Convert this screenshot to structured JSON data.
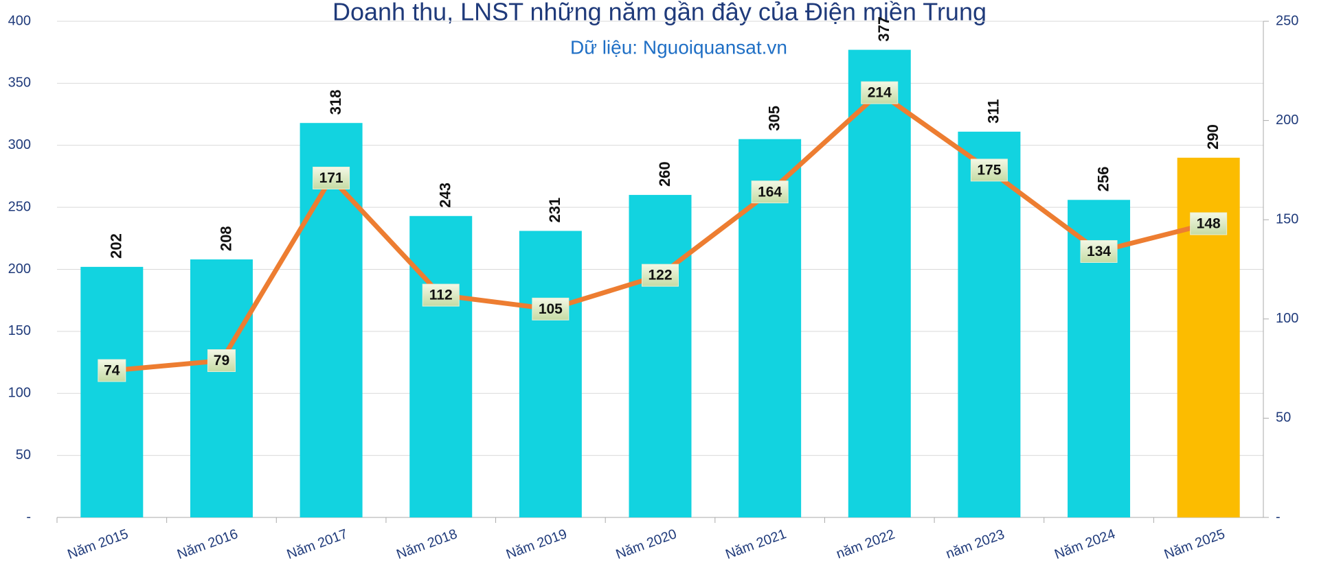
{
  "chart_data": {
    "type": "bar-line",
    "title": "Doanh thu, LNST những năm gần đây của Điện miền Trung",
    "subtitle": "Dữ liệu: Nguoiquansat.vn",
    "categories": [
      "Năm 2015",
      "Năm 2016",
      "Năm 2017",
      "Năm 2018",
      "Năm 2019",
      "Năm 2020",
      "Năm 2021",
      "năm 2022",
      "năm 2023",
      "Năm 2024",
      "Năm 2025"
    ],
    "series": [
      {
        "type": "bar",
        "colors": [
          "#12d3e0",
          "#12d3e0",
          "#12d3e0",
          "#12d3e0",
          "#12d3e0",
          "#12d3e0",
          "#12d3e0",
          "#12d3e0",
          "#12d3e0",
          "#12d3e0",
          "#fcbc00"
        ],
        "values": [
          202,
          208,
          318,
          243,
          231,
          260,
          305,
          377,
          311,
          256,
          290
        ]
      },
      {
        "type": "line",
        "axis": "y2",
        "color": "#ed7d31",
        "values": [
          74,
          79,
          171,
          112,
          105,
          122,
          164,
          214,
          175,
          134,
          148
        ]
      }
    ],
    "ylim": [
      0,
      400
    ],
    "yticks": [
      {
        "value": 0,
        "label": "-"
      },
      50,
      100,
      150,
      200,
      250,
      300,
      350,
      400
    ],
    "y2lim": [
      0,
      250
    ],
    "y2ticks": [
      {
        "value": 0,
        "label": "-"
      },
      50,
      100,
      150,
      200,
      250
    ],
    "grid": true
  }
}
